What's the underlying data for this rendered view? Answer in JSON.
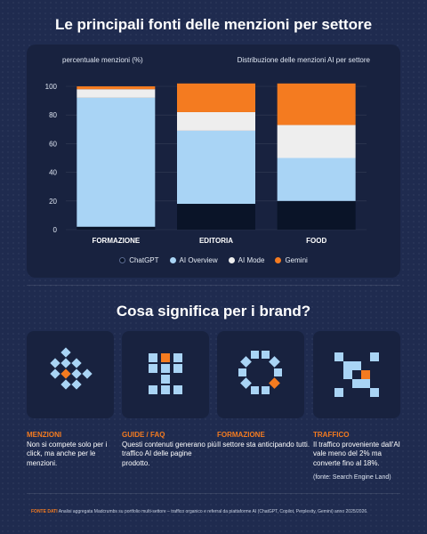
{
  "title": "Le principali fonti delle menzioni per settore",
  "chart_data": {
    "type": "bar",
    "stacked": true,
    "ylabel": "percentuale menzioni (%)",
    "subtitle": "Distribuzione delle menzioni AI per settore",
    "categories": [
      "FORMAZIONE",
      "EDITORIA",
      "FOOD"
    ],
    "ylim": [
      0,
      100
    ],
    "yticks": [
      0,
      20,
      40,
      60,
      80,
      100
    ],
    "grid": true,
    "legend_position": "bottom",
    "series": [
      {
        "name": "ChatGPT",
        "values": [
          2,
          18,
          20
        ],
        "color": "#0a1428"
      },
      {
        "name": "AI Overview",
        "values": [
          90,
          51,
          30
        ],
        "color": "#a9d4f5"
      },
      {
        "name": "AI Mode",
        "values": [
          6,
          13,
          23
        ],
        "color": "#eeeeee"
      },
      {
        "name": "Gemini",
        "values": [
          2,
          20,
          29
        ],
        "color": "#f47b20"
      }
    ]
  },
  "section_title": "Cosa significa per i brand?",
  "cards": [
    {
      "icon": "diamond-cluster-icon",
      "title": "MENZIONI",
      "text": "Non si compete solo per i click, ma anche per le menzioni."
    },
    {
      "icon": "stacked-blocks-icon",
      "title": "GUIDE / FAQ",
      "text": "Questi contenuti generano più traffico AI delle pagine prodotto."
    },
    {
      "icon": "ring-pattern-icon",
      "title": "FORMAZIONE",
      "text": "Il settore sta anticipando tutti."
    },
    {
      "icon": "x-pattern-icon",
      "title": "TRAFFICO",
      "text": "Il traffico proveniente dall'AI vale meno del 2% ma converte fino al 18%."
    }
  ],
  "source": "(fonte: Search Engine Land)",
  "footer": {
    "label": "FONTE DATI",
    "text": "Analisi aggregata Madcrumbs su portfolio multi-settore – traffico organico e referral da piattaforme AI (ChatGPT, Copilot, Perplexity, Gemini) anno 2025/2026."
  },
  "colors": {
    "background": "#1f2b4f",
    "panel": "#18223f",
    "accent": "#f47b20",
    "light_blue": "#a9d4f5"
  }
}
